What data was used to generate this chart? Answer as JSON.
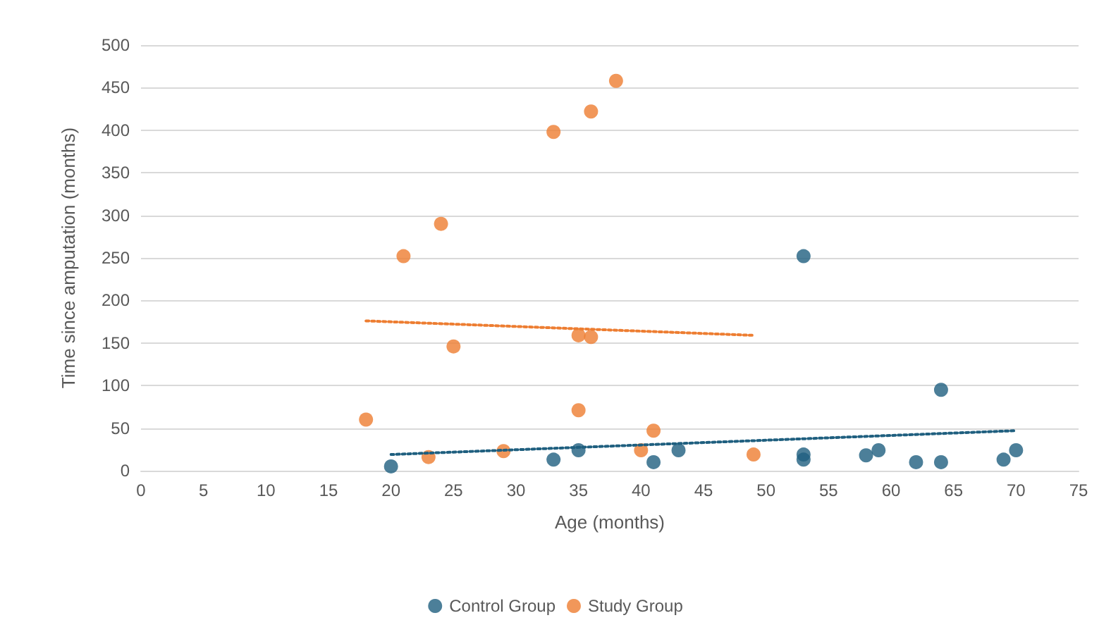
{
  "chart_data": {
    "type": "scatter",
    "xlabel": "Age (months)",
    "ylabel": "Time since amputation (months)",
    "xlim": [
      0,
      75
    ],
    "xticks": [
      0,
      5,
      10,
      15,
      20,
      25,
      30,
      35,
      40,
      45,
      50,
      55,
      60,
      65,
      70,
      75
    ],
    "ylim": [
      0,
      500
    ],
    "yticks": [
      0,
      50,
      100,
      150,
      200,
      250,
      300,
      350,
      400,
      450,
      500
    ],
    "grid": "y",
    "legend": "bottom",
    "marker": "circle",
    "series": [
      {
        "name": "Control Group",
        "color": "#1f5f7f",
        "x": [
          20,
          33,
          35,
          41,
          43,
          53,
          53,
          53,
          58,
          59,
          62,
          64,
          64,
          69,
          70
        ],
        "values": [
          5,
          13,
          24,
          10,
          24,
          252,
          19,
          13,
          18,
          24,
          10,
          10,
          95,
          13,
          24
        ]
      },
      {
        "name": "Study Group",
        "color": "#ed7d31",
        "x": [
          18,
          21,
          24,
          25,
          23,
          29,
          33,
          35,
          36,
          36,
          38,
          35,
          41,
          40,
          49
        ],
        "values": [
          60,
          252,
          290,
          146,
          16,
          23,
          398,
          159,
          157,
          422,
          458,
          71,
          47,
          24,
          19
        ]
      },
      {
        "type": "line",
        "color": "#1f5f7f",
        "line_style": "dotted",
        "marker": "none",
        "x": [
          20,
          70
        ],
        "values": [
          19,
          47
        ]
      },
      {
        "type": "line",
        "color": "#ed7d31",
        "line_style": "dotted",
        "marker": "none",
        "x": [
          18,
          49
        ],
        "values": [
          176,
          159
        ]
      }
    ]
  }
}
